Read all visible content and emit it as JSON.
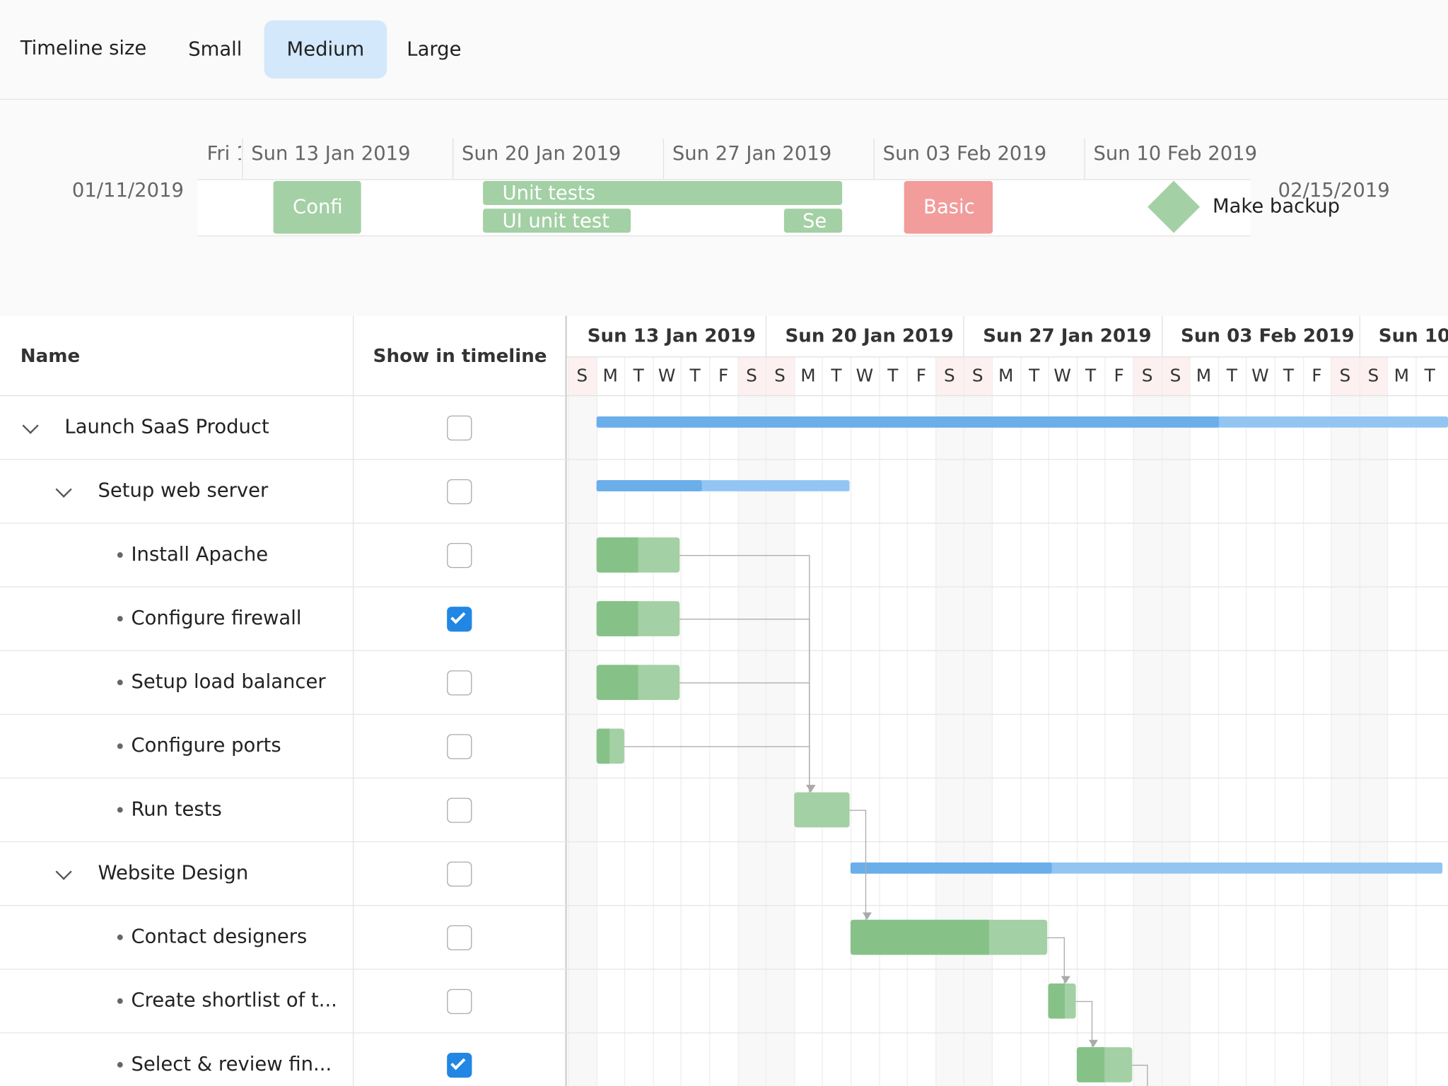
{
  "toolbar": {
    "label": "Timeline size",
    "options": [
      "Small",
      "Medium",
      "Large"
    ],
    "selected": 1
  },
  "timeline": {
    "start_date": "01/11/2019",
    "end_date": "02/15/2019",
    "headers": [
      "Fri 1",
      "Sun 13 Jan 2019",
      "Sun 20 Jan 2019",
      "Sun 27 Jan 2019",
      "Sun 03 Feb 2019",
      "Sun 10 Feb 2019"
    ],
    "items": [
      "Confi",
      "Unit tests",
      "UI unit test",
      "Se",
      "Basic",
      "Make backup"
    ]
  },
  "grid": {
    "columns": [
      "Name",
      "Show in timeline"
    ],
    "weeks": [
      "Sun 13 Jan 2019",
      "Sun 20 Jan 2019",
      "Sun 27 Jan 2019",
      "Sun 03 Feb 2019",
      "Sun 10"
    ],
    "days": [
      "S",
      "M",
      "T",
      "W",
      "T",
      "F",
      "S",
      "S",
      "M",
      "T",
      "W",
      "T",
      "F",
      "S",
      "S",
      "M",
      "T",
      "W",
      "T",
      "F",
      "S",
      "S",
      "M",
      "T",
      "W",
      "T",
      "F",
      "S",
      "S",
      "M",
      "T"
    ],
    "rows": [
      {
        "name": "Launch SaaS Product",
        "level": 0,
        "expanded": true,
        "checked": false
      },
      {
        "name": "Setup web server",
        "level": 1,
        "expanded": true,
        "checked": false
      },
      {
        "name": "Install Apache",
        "level": 2,
        "checked": false
      },
      {
        "name": "Configure firewall",
        "level": 2,
        "checked": true
      },
      {
        "name": "Setup load balancer",
        "level": 2,
        "checked": false
      },
      {
        "name": "Configure ports",
        "level": 2,
        "checked": false
      },
      {
        "name": "Run tests",
        "level": 2,
        "checked": false
      },
      {
        "name": "Website Design",
        "level": 1,
        "expanded": true,
        "checked": false
      },
      {
        "name": "Contact designers",
        "level": 2,
        "checked": false
      },
      {
        "name": "Create shortlist of t...",
        "level": 2,
        "checked": false
      },
      {
        "name": "Select & review fin...",
        "level": 2,
        "checked": true
      }
    ]
  }
}
